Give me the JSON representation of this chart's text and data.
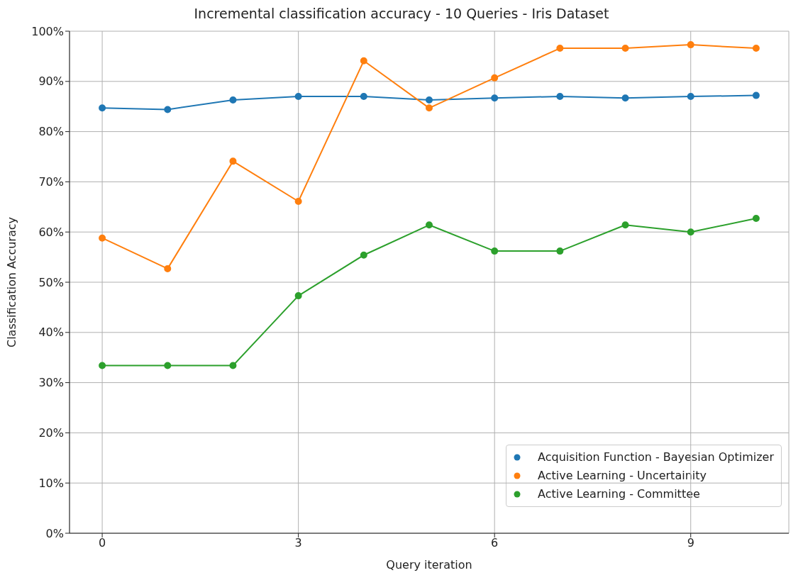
{
  "chart_data": {
    "type": "line",
    "title": "Incremental classification accuracy - 10 Queries - Iris Dataset",
    "xlabel": "Query iteration",
    "ylabel": "Classification Accuracy",
    "x": [
      0,
      1,
      2,
      3,
      4,
      5,
      6,
      7,
      8,
      9,
      10
    ],
    "series": [
      {
        "name": "Acquisition Function - Bayesian Optimizer",
        "color": "#1f77b4",
        "values": [
          84.7,
          84.4,
          86.3,
          87.0,
          87.0,
          86.3,
          86.7,
          87.0,
          86.7,
          87.0,
          87.2
        ]
      },
      {
        "name": "Active Learning - Uncertainity",
        "color": "#ff7f0e",
        "values": [
          58.8,
          52.7,
          74.1,
          66.1,
          94.1,
          84.7,
          90.7,
          96.6,
          96.6,
          97.3,
          96.6
        ]
      },
      {
        "name": "Active Learning - Committee",
        "color": "#2ca02c",
        "values": [
          33.4,
          33.4,
          33.4,
          47.3,
          55.4,
          61.4,
          56.2,
          56.2,
          61.4,
          60.0,
          62.7
        ]
      }
    ],
    "xlim": [
      -0.5,
      10.5
    ],
    "xticks": [
      0,
      3,
      6,
      9
    ],
    "ylim": [
      0,
      100
    ],
    "yticks": [
      {
        "value": 0,
        "label": "0%"
      },
      {
        "value": 10,
        "label": "10%"
      },
      {
        "value": 20,
        "label": "20%"
      },
      {
        "value": 30,
        "label": "30%"
      },
      {
        "value": 40,
        "label": "40%"
      },
      {
        "value": 50,
        "label": "50%"
      },
      {
        "value": 60,
        "label": "60%"
      },
      {
        "value": 70,
        "label": "70%"
      },
      {
        "value": 80,
        "label": "80%"
      },
      {
        "value": 90,
        "label": "90%"
      },
      {
        "value": 100,
        "label": "100%"
      }
    ],
    "grid": true,
    "legend": "bottom right",
    "marker": "circle",
    "line_style": "solid"
  }
}
